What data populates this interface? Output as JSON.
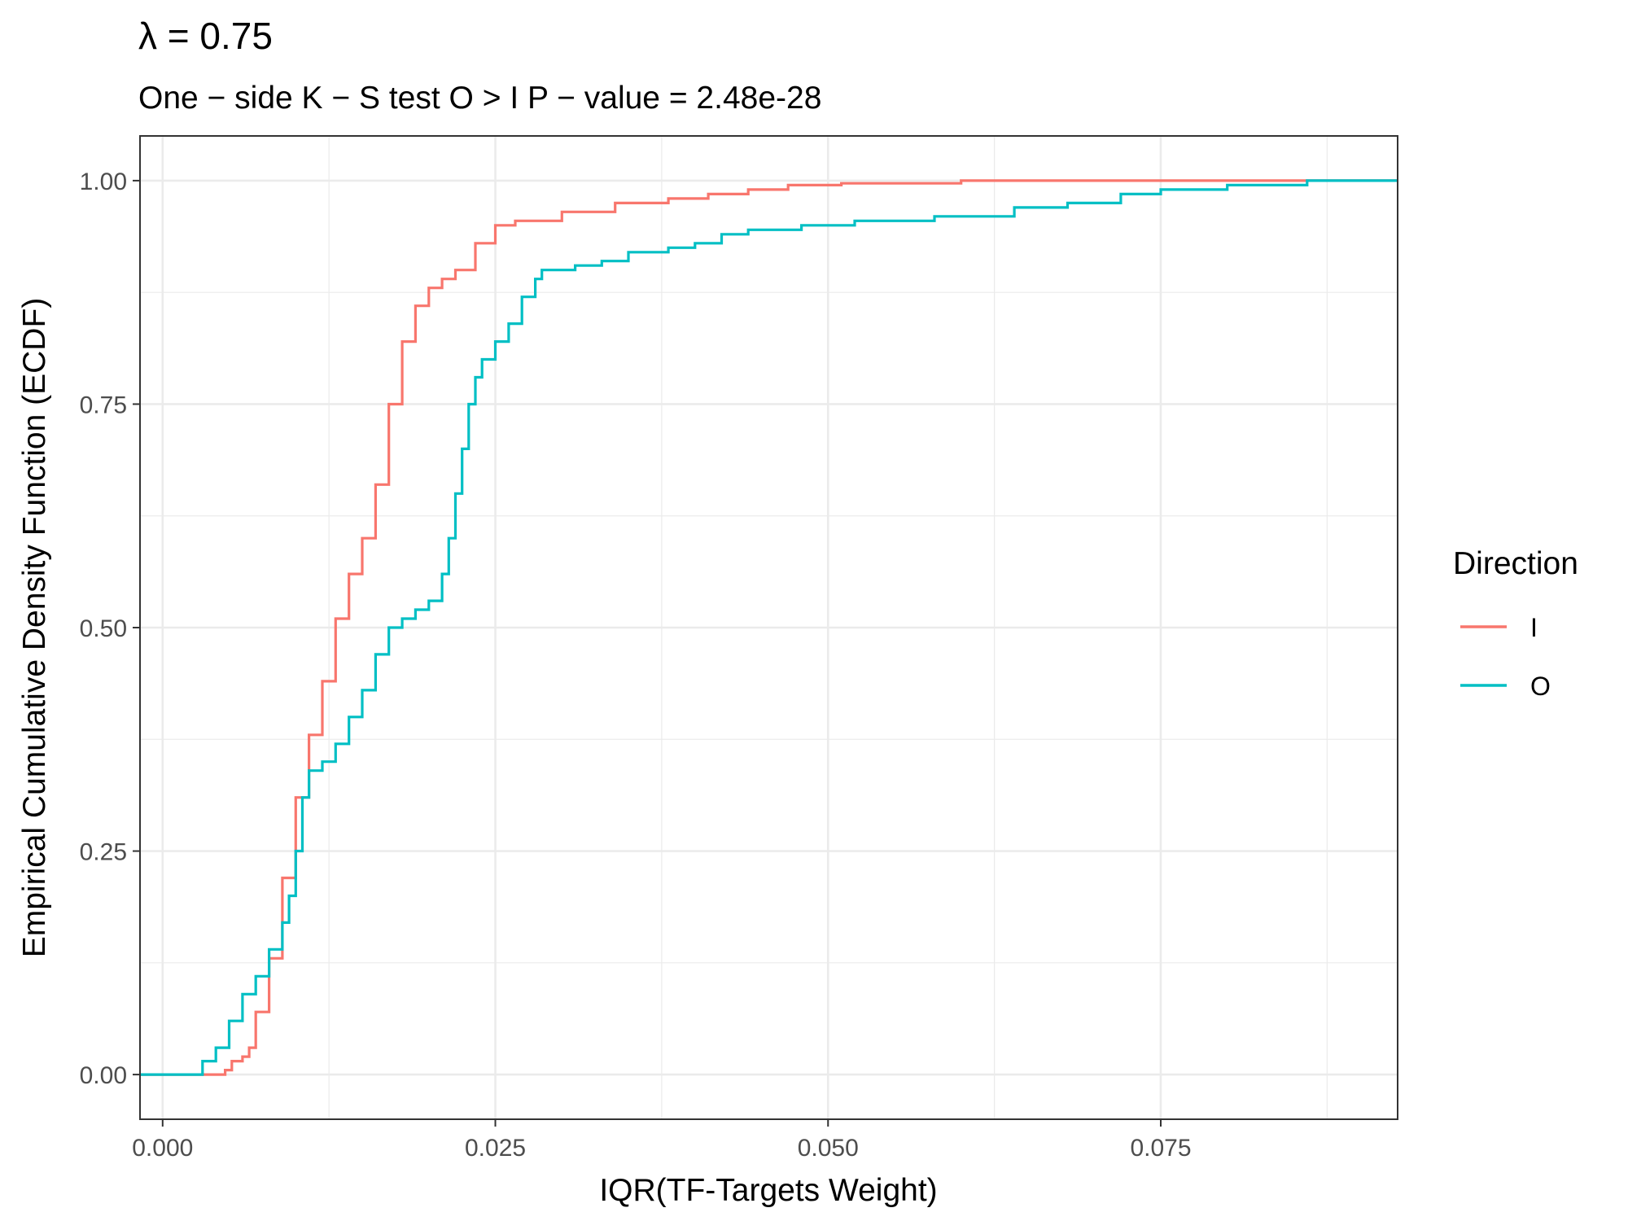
{
  "chart_data": {
    "type": "line",
    "title": "λ = 0.75",
    "subtitle": "One − side K − S test O > I P − value = 2.48e-28",
    "xlabel": "IQR(TF-Targets Weight)",
    "ylabel": "Empirical Cumulative Density Function (ECDF)",
    "xlim": [
      -0.0017,
      0.0928
    ],
    "ylim": [
      -0.05,
      1.05
    ],
    "x_ticks": [
      0.0,
      0.025,
      0.05,
      0.075
    ],
    "x_tick_labels": [
      "0.000",
      "0.025",
      "0.050",
      "0.075"
    ],
    "y_ticks": [
      0.0,
      0.25,
      0.5,
      0.75,
      1.0
    ],
    "y_tick_labels": [
      "0.00",
      "0.25",
      "0.50",
      "0.75",
      "1.00"
    ],
    "grid": true,
    "legend": {
      "title": "Direction",
      "position": "right"
    },
    "series": [
      {
        "name": "I",
        "color": "#F8766D",
        "points": [
          [
            -0.0017,
            0.0
          ],
          [
            0.004,
            0.0
          ],
          [
            0.0047,
            0.005
          ],
          [
            0.0052,
            0.015
          ],
          [
            0.006,
            0.02
          ],
          [
            0.0065,
            0.03
          ],
          [
            0.007,
            0.07
          ],
          [
            0.008,
            0.13
          ],
          [
            0.009,
            0.22
          ],
          [
            0.01,
            0.31
          ],
          [
            0.011,
            0.38
          ],
          [
            0.012,
            0.44
          ],
          [
            0.013,
            0.51
          ],
          [
            0.014,
            0.56
          ],
          [
            0.015,
            0.6
          ],
          [
            0.016,
            0.66
          ],
          [
            0.017,
            0.75
          ],
          [
            0.018,
            0.82
          ],
          [
            0.019,
            0.86
          ],
          [
            0.02,
            0.88
          ],
          [
            0.021,
            0.89
          ],
          [
            0.022,
            0.9
          ],
          [
            0.0235,
            0.93
          ],
          [
            0.025,
            0.95
          ],
          [
            0.0265,
            0.955
          ],
          [
            0.0285,
            0.955
          ],
          [
            0.03,
            0.965
          ],
          [
            0.034,
            0.975
          ],
          [
            0.038,
            0.98
          ],
          [
            0.041,
            0.985
          ],
          [
            0.044,
            0.99
          ],
          [
            0.047,
            0.995
          ],
          [
            0.051,
            0.997
          ],
          [
            0.06,
            1.0
          ],
          [
            0.0928,
            1.0
          ]
        ]
      },
      {
        "name": "O",
        "color": "#00BFC4",
        "points": [
          [
            -0.0017,
            0.0
          ],
          [
            0.0025,
            0.0
          ],
          [
            0.003,
            0.015
          ],
          [
            0.004,
            0.03
          ],
          [
            0.005,
            0.06
          ],
          [
            0.006,
            0.09
          ],
          [
            0.007,
            0.11
          ],
          [
            0.008,
            0.14
          ],
          [
            0.009,
            0.17
          ],
          [
            0.0095,
            0.2
          ],
          [
            0.01,
            0.25
          ],
          [
            0.0105,
            0.31
          ],
          [
            0.011,
            0.34
          ],
          [
            0.012,
            0.35
          ],
          [
            0.013,
            0.37
          ],
          [
            0.014,
            0.4
          ],
          [
            0.015,
            0.43
          ],
          [
            0.016,
            0.47
          ],
          [
            0.017,
            0.5
          ],
          [
            0.018,
            0.51
          ],
          [
            0.019,
            0.52
          ],
          [
            0.02,
            0.53
          ],
          [
            0.021,
            0.56
          ],
          [
            0.0215,
            0.6
          ],
          [
            0.022,
            0.65
          ],
          [
            0.0225,
            0.7
          ],
          [
            0.023,
            0.75
          ],
          [
            0.0235,
            0.78
          ],
          [
            0.024,
            0.8
          ],
          [
            0.025,
            0.82
          ],
          [
            0.026,
            0.84
          ],
          [
            0.027,
            0.87
          ],
          [
            0.028,
            0.89
          ],
          [
            0.0285,
            0.9
          ],
          [
            0.031,
            0.905
          ],
          [
            0.033,
            0.91
          ],
          [
            0.035,
            0.92
          ],
          [
            0.038,
            0.925
          ],
          [
            0.04,
            0.93
          ],
          [
            0.042,
            0.94
          ],
          [
            0.044,
            0.945
          ],
          [
            0.048,
            0.95
          ],
          [
            0.052,
            0.955
          ],
          [
            0.058,
            0.96
          ],
          [
            0.064,
            0.97
          ],
          [
            0.068,
            0.975
          ],
          [
            0.072,
            0.985
          ],
          [
            0.075,
            0.99
          ],
          [
            0.08,
            0.995
          ],
          [
            0.086,
            1.0
          ],
          [
            0.0928,
            1.0
          ]
        ]
      }
    ]
  }
}
